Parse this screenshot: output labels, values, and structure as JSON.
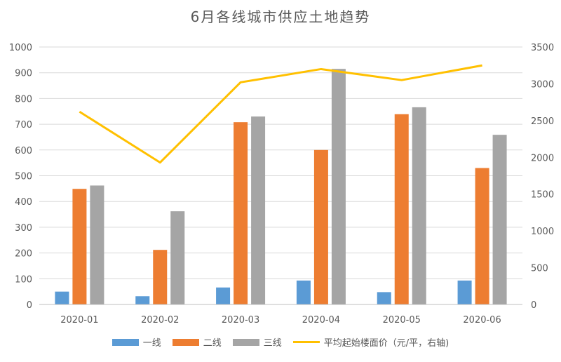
{
  "chart_data": {
    "type": "bar",
    "title": "6月各线城市供应土地趋势",
    "categories": [
      "2020-01",
      "2020-02",
      "2020-03",
      "2020-04",
      "2020-05",
      "2020-06"
    ],
    "series": [
      {
        "name": "一线",
        "type": "bar",
        "axis": "left",
        "color": "#5B9BD5",
        "values": [
          50,
          32,
          66,
          93,
          48,
          93
        ]
      },
      {
        "name": "二线",
        "type": "bar",
        "axis": "left",
        "color": "#ED7D31",
        "values": [
          449,
          212,
          708,
          600,
          739,
          530
        ]
      },
      {
        "name": "三线",
        "type": "bar",
        "axis": "left",
        "color": "#A5A5A5",
        "values": [
          462,
          362,
          730,
          915,
          766,
          659
        ]
      },
      {
        "name": "平均起始楼面价（元/平，右轴)",
        "type": "line",
        "axis": "right",
        "color": "#FFC000",
        "values": [
          2620,
          1930,
          3020,
          3200,
          3050,
          3250
        ]
      }
    ],
    "y_left": {
      "min": 0,
      "max": 1000,
      "ticks": [
        "0",
        "100",
        "200",
        "300",
        "400",
        "500",
        "600",
        "700",
        "800",
        "900",
        "1000"
      ]
    },
    "y_right": {
      "min": 0,
      "max": 3500,
      "ticks": [
        "0",
        "500",
        "1000",
        "1500",
        "2000",
        "2500",
        "3000",
        "3500"
      ]
    },
    "grid": true,
    "legend_position": "bottom"
  }
}
